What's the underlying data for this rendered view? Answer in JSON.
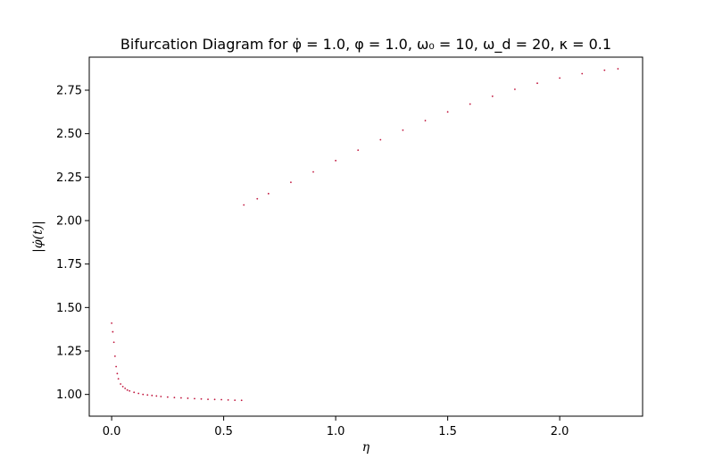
{
  "chart_data": {
    "type": "scatter",
    "title": "Bifurcation Diagram for φ̇ = 1.0, φ = 1.0, ω₀ = 10, ω_d = 20, κ = 0.1",
    "xlabel": "η",
    "ylabel": "|φ̇(t)|",
    "xlim": [
      -0.1,
      2.37
    ],
    "ylim": [
      0.875,
      2.94
    ],
    "x_ticks": [
      0.0,
      0.5,
      1.0,
      1.5,
      2.0
    ],
    "x_tick_labels": [
      "0.0",
      "0.5",
      "1.0",
      "1.5",
      "2.0"
    ],
    "y_ticks": [
      1.0,
      1.25,
      1.5,
      1.75,
      2.0,
      2.25,
      2.5,
      2.75
    ],
    "y_tick_labels": [
      "1.00",
      "1.25",
      "1.50",
      "1.75",
      "2.00",
      "2.25",
      "2.50",
      "2.75"
    ],
    "grid": false,
    "marker_color": "#c0143c",
    "series": [
      {
        "points": [
          [
            0.0,
            1.41
          ],
          [
            0.005,
            1.36
          ],
          [
            0.01,
            1.3
          ],
          [
            0.015,
            1.22
          ],
          [
            0.02,
            1.16
          ],
          [
            0.025,
            1.12
          ],
          [
            0.03,
            1.09
          ],
          [
            0.04,
            1.06
          ],
          [
            0.05,
            1.045
          ],
          [
            0.06,
            1.035
          ],
          [
            0.07,
            1.025
          ],
          [
            0.08,
            1.02
          ],
          [
            0.1,
            1.012
          ],
          [
            0.12,
            1.006
          ],
          [
            0.14,
            1.0
          ],
          [
            0.16,
            0.997
          ],
          [
            0.18,
            0.994
          ],
          [
            0.2,
            0.991
          ],
          [
            0.22,
            0.988
          ],
          [
            0.25,
            0.985
          ],
          [
            0.28,
            0.982
          ],
          [
            0.31,
            0.98
          ],
          [
            0.34,
            0.978
          ],
          [
            0.37,
            0.976
          ],
          [
            0.4,
            0.974
          ],
          [
            0.43,
            0.972
          ],
          [
            0.46,
            0.971
          ],
          [
            0.49,
            0.97
          ],
          [
            0.52,
            0.968
          ],
          [
            0.55,
            0.967
          ],
          [
            0.58,
            0.966
          ]
        ]
      },
      {
        "points": [
          [
            0.59,
            2.09
          ],
          [
            0.65,
            2.125
          ],
          [
            0.7,
            2.155
          ],
          [
            0.8,
            2.22
          ],
          [
            0.9,
            2.28
          ],
          [
            1.0,
            2.345
          ],
          [
            1.1,
            2.405
          ],
          [
            1.2,
            2.465
          ],
          [
            1.3,
            2.52
          ],
          [
            1.4,
            2.575
          ],
          [
            1.5,
            2.625
          ],
          [
            1.6,
            2.67
          ],
          [
            1.7,
            2.715
          ],
          [
            1.8,
            2.755
          ],
          [
            1.9,
            2.79
          ],
          [
            2.0,
            2.82
          ],
          [
            2.1,
            2.845
          ],
          [
            2.2,
            2.865
          ],
          [
            2.26,
            2.873
          ]
        ]
      }
    ]
  }
}
